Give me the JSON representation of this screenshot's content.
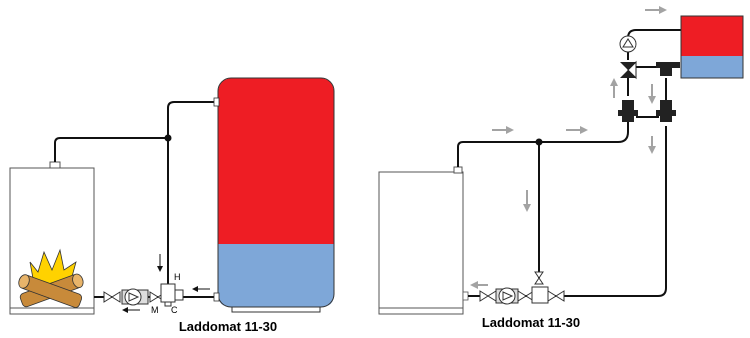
{
  "left_diagram": {
    "caption": "Laddomat 11-30",
    "port_labels": {
      "h": "H",
      "m": "M",
      "c": "C"
    }
  },
  "right_diagram": {
    "caption": "Laddomat 11-30"
  },
  "colors": {
    "hot": "#ee1d24",
    "cold": "#7ea7d8",
    "flow_arrow": "#a3a3a3",
    "pipe": "#111111",
    "flame": "#ffd200",
    "wood": "#c88a3a"
  },
  "icons": [
    "boiler-icon",
    "fire-icon",
    "tank-icon",
    "pump-icon",
    "valve-icon",
    "three-way-valve-icon",
    "flow-arrow-icon"
  ]
}
